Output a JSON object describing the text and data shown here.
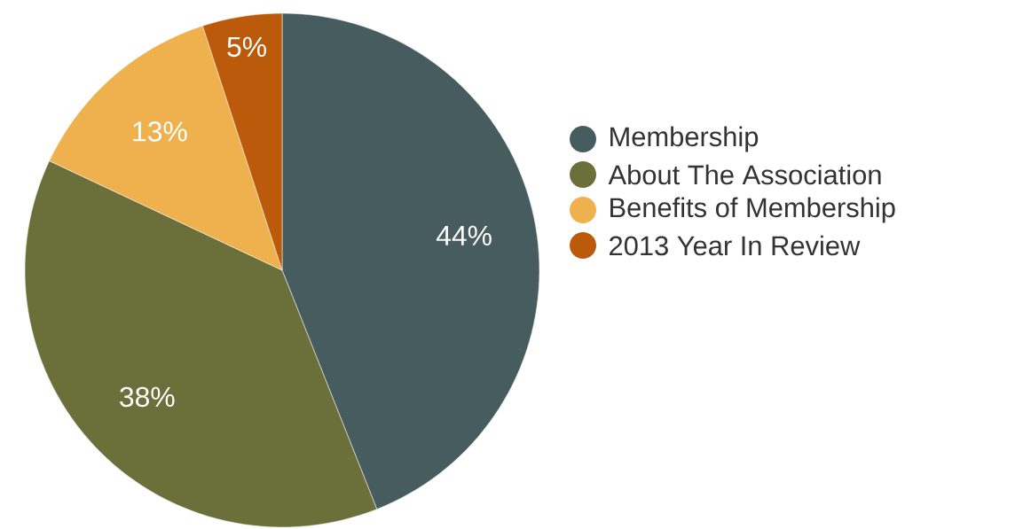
{
  "chart_data": {
    "type": "pie",
    "categories": [
      "Membership",
      "About The Association",
      "Benefits of Membership",
      "2013 Year In Review"
    ],
    "values": [
      44,
      38,
      13,
      5
    ],
    "value_labels": [
      "44%",
      "38%",
      "13%",
      "5%"
    ],
    "colors": [
      "#475c5f",
      "#6b703a",
      "#efb04e",
      "#bb5a0b"
    ],
    "legend": "right"
  }
}
